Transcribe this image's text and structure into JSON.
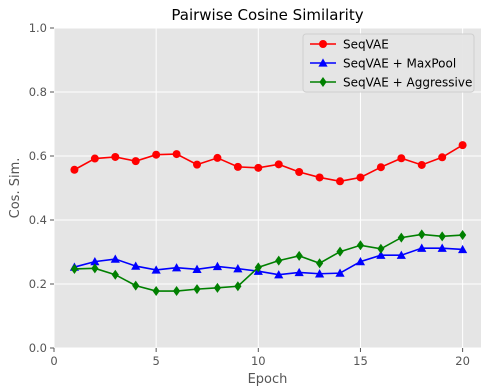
{
  "chart_data": {
    "type": "line",
    "title": "Pairwise Cosine Similarity",
    "xlabel": "Epoch",
    "ylabel": "Cos. Sim.",
    "xlim": [
      0,
      20.9
    ],
    "ylim": [
      0.0,
      1.0
    ],
    "xticks": [
      0,
      5,
      10,
      15,
      20
    ],
    "yticks": [
      0.0,
      0.2,
      0.4,
      0.6,
      0.8,
      1.0
    ],
    "ytick_labels": [
      "0.0",
      "0.2",
      "0.4",
      "0.6",
      "0.8",
      "1.0"
    ],
    "grid": true,
    "legend_position": "top-right",
    "x": [
      1,
      2,
      3,
      4,
      5,
      6,
      7,
      8,
      9,
      10,
      11,
      12,
      13,
      14,
      15,
      16,
      17,
      18,
      19,
      20
    ],
    "series": [
      {
        "name": "SeqVAE",
        "color": "#ff0000",
        "marker": "circle",
        "values": [
          0.557,
          0.592,
          0.597,
          0.584,
          0.604,
          0.606,
          0.573,
          0.594,
          0.566,
          0.563,
          0.574,
          0.55,
          0.533,
          0.521,
          0.533,
          0.565,
          0.593,
          0.572,
          0.596,
          0.634
        ]
      },
      {
        "name": "SeqVAE + MaxPool",
        "color": "#0000ff",
        "marker": "triangle",
        "values": [
          0.253,
          0.27,
          0.278,
          0.256,
          0.244,
          0.251,
          0.246,
          0.255,
          0.248,
          0.24,
          0.229,
          0.236,
          0.232,
          0.234,
          0.27,
          0.29,
          0.29,
          0.312,
          0.312,
          0.308
        ]
      },
      {
        "name": "SeqVAE + Aggressive",
        "color": "#008000",
        "marker": "diamond",
        "values": [
          0.247,
          0.249,
          0.229,
          0.195,
          0.178,
          0.178,
          0.184,
          0.188,
          0.193,
          0.252,
          0.273,
          0.288,
          0.265,
          0.301,
          0.321,
          0.31,
          0.345,
          0.355,
          0.349,
          0.353
        ]
      }
    ]
  }
}
